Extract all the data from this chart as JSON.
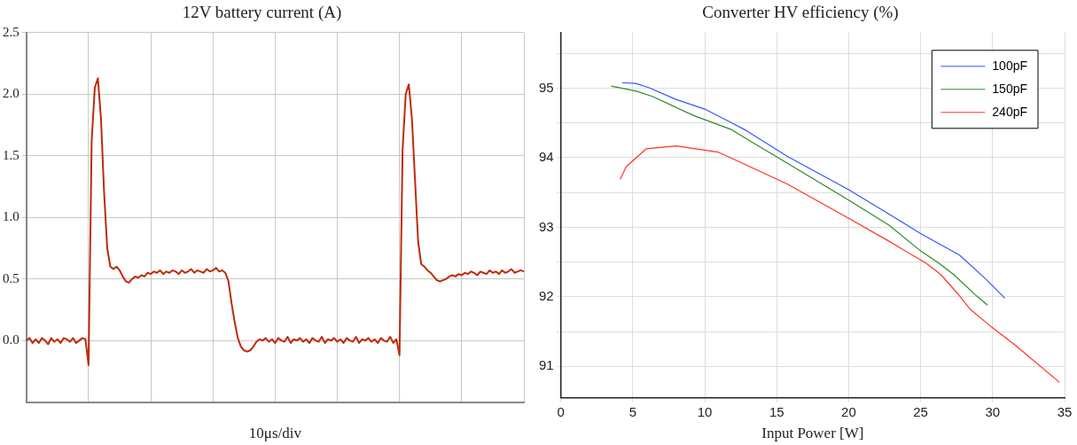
{
  "chart_data": [
    {
      "type": "line",
      "title": "12V battery current (A)",
      "xlabel": "10μs/div",
      "categories": [
        null,
        null,
        null,
        null,
        null,
        null,
        null,
        null,
        null,
        null,
        null,
        null,
        null,
        null,
        null,
        null,
        null,
        null,
        null,
        null,
        null,
        null,
        null,
        null,
        null,
        null,
        null,
        null,
        null,
        null,
        null,
        null,
        null,
        null,
        null,
        null,
        null,
        null,
        null,
        null,
        null,
        null,
        null,
        null,
        null,
        null,
        null,
        null,
        null,
        null,
        null,
        null,
        null,
        null,
        null,
        null,
        null,
        null,
        null,
        null,
        null,
        null,
        null,
        null,
        null,
        null,
        null,
        null,
        null,
        null,
        null,
        null,
        null,
        null,
        null,
        null,
        null,
        null,
        null,
        null,
        null,
        null,
        null,
        null,
        null,
        null,
        null,
        null,
        null,
        null,
        null,
        null,
        null,
        null,
        null,
        null,
        null,
        null,
        null,
        null,
        null,
        null,
        null,
        null,
        null,
        null,
        null,
        null,
        null,
        null,
        null,
        null,
        null,
        null,
        null,
        null,
        null,
        null,
        null,
        null,
        null,
        null,
        null,
        null,
        null,
        null,
        null,
        null,
        null,
        null,
        null,
        null,
        null,
        null,
        null,
        null,
        null,
        null,
        null,
        null,
        null,
        null,
        null,
        null,
        null,
        null,
        null,
        null,
        null,
        null,
        null,
        null,
        null,
        null,
        null,
        null,
        null,
        null,
        null,
        null,
        null
      ],
      "ylim": [
        -0.5,
        2.5
      ],
      "yticks": [
        {
          "value": 0,
          "label": "0.0"
        },
        {
          "value": 0.5,
          "label": "0.5"
        },
        {
          "value": 1,
          "label": "1.0"
        },
        {
          "value": 1.5,
          "label": "1.5"
        },
        {
          "value": 2,
          "label": "2.0"
        },
        {
          "value": 2.5,
          "label": "2.5"
        }
      ],
      "grid": true,
      "marker": "none",
      "line_style": "solid",
      "series": [
        {
          "color": "#bf2a0a",
          "values": [
            0,
            0.02,
            -0.02,
            0.01,
            -0.02,
            0.02,
            0,
            -0.03,
            0.02,
            -0.01,
            0.01,
            -0.02,
            0.02,
            0.01,
            -0.01,
            0.02,
            -0.02,
            0,
            0.02,
            0.01,
            -0.2,
            1.62,
            2.05,
            2.13,
            1.8,
            1.2,
            0.75,
            0.6,
            0.58,
            0.6,
            0.57,
            0.52,
            0.48,
            0.47,
            0.5,
            0.52,
            0.51,
            0.53,
            0.52,
            0.55,
            0.54,
            0.56,
            0.55,
            0.57,
            0.54,
            0.56,
            0.55,
            0.57,
            0.56,
            0.54,
            0.57,
            0.55,
            0.56,
            0.58,
            0.55,
            0.57,
            0.56,
            0.55,
            0.58,
            0.56,
            0.57,
            0.59,
            0.56,
            0.57,
            0.55,
            0.48,
            0.3,
            0.15,
            0.02,
            -0.05,
            -0.08,
            -0.09,
            -0.08,
            -0.05,
            -0.01,
            0.01,
            0,
            0.02,
            -0.01,
            0.01,
            -0.02,
            0.02,
            0,
            -0.01,
            0.03,
            -0.02,
            0.01,
            0,
            0.02,
            -0.01,
            0.01,
            -0.02,
            0.02,
            0,
            -0.01,
            0.03,
            -0.02,
            0.01,
            0,
            0.02,
            -0.01,
            0.01,
            -0.02,
            0.02,
            0,
            -0.01,
            0.03,
            -0.02,
            0.01,
            0,
            0.02,
            -0.01,
            0.01,
            -0.02,
            0.02,
            0,
            -0.01,
            0.03,
            -0.02,
            0.01,
            -0.12,
            1.55,
            2.0,
            2.08,
            1.8,
            1.3,
            0.8,
            0.62,
            0.6,
            0.57,
            0.55,
            0.52,
            0.49,
            0.48,
            0.49,
            0.5,
            0.52,
            0.53,
            0.52,
            0.54,
            0.53,
            0.55,
            0.54,
            0.56,
            0.55,
            0.53,
            0.56,
            0.55,
            0.54,
            0.57,
            0.55,
            0.56,
            0.54,
            0.57,
            0.55,
            0.56,
            0.58,
            0.55,
            0.56,
            0.57,
            0.56
          ]
        }
      ]
    },
    {
      "type": "line",
      "title": "Converter HV efficiency (%)",
      "xlabel": "Input Power [W]",
      "xlim": [
        0,
        35
      ],
      "xticks": [
        0,
        5,
        10,
        15,
        20,
        25,
        30,
        35
      ],
      "ylim": [
        90.55,
        95.8
      ],
      "yticks": [
        91,
        {
          "value": 91.5,
          "label": null
        },
        92,
        {
          "value": 92.5,
          "label": null
        },
        93,
        {
          "value": 93.5,
          "label": null
        },
        94,
        {
          "value": 94.5,
          "label": null
        },
        95,
        {
          "value": 95.5,
          "label": null
        }
      ],
      "grid": true,
      "legend": "top right",
      "marker": "none",
      "line_style": "solid",
      "series": [
        {
          "name": "100pF",
          "color": "#3355ff",
          "x": [
            4.25,
            5.2,
            6.1,
            8.0,
            10,
            11.8,
            12.9,
            15.75,
            20,
            22.8,
            25,
            27.7,
            29.4,
            30.85
          ],
          "values": [
            95.08,
            95.07,
            95.01,
            94.84,
            94.7,
            94.51,
            94.39,
            94.02,
            93.54,
            93.19,
            92.91,
            92.6,
            92.28,
            91.98
          ]
        },
        {
          "name": "150pF",
          "color": "#2a8a2a",
          "x": [
            3.5,
            5.2,
            6.4,
            9.2,
            11.8,
            13.4,
            15.75,
            20,
            22.8,
            25,
            26.3,
            27.3,
            28.9,
            29.65
          ],
          "values": [
            95.03,
            94.96,
            94.88,
            94.61,
            94.41,
            94.21,
            93.92,
            93.39,
            93.03,
            92.66,
            92.48,
            92.32,
            92.01,
            91.88
          ]
        },
        {
          "name": "240pF",
          "color": "#ff3322",
          "x": [
            4.13,
            4.53,
            5.94,
            8.0,
            10,
            10.94,
            12.0,
            15.75,
            20,
            22.8,
            25.4,
            26.4,
            27.6,
            28.4,
            29.9,
            31.6,
            34.65
          ],
          "values": [
            93.69,
            93.87,
            94.13,
            94.17,
            94.11,
            94.08,
            93.98,
            93.62,
            93.13,
            92.8,
            92.48,
            92.32,
            92.04,
            91.83,
            91.57,
            91.3,
            90.77
          ]
        }
      ]
    }
  ]
}
